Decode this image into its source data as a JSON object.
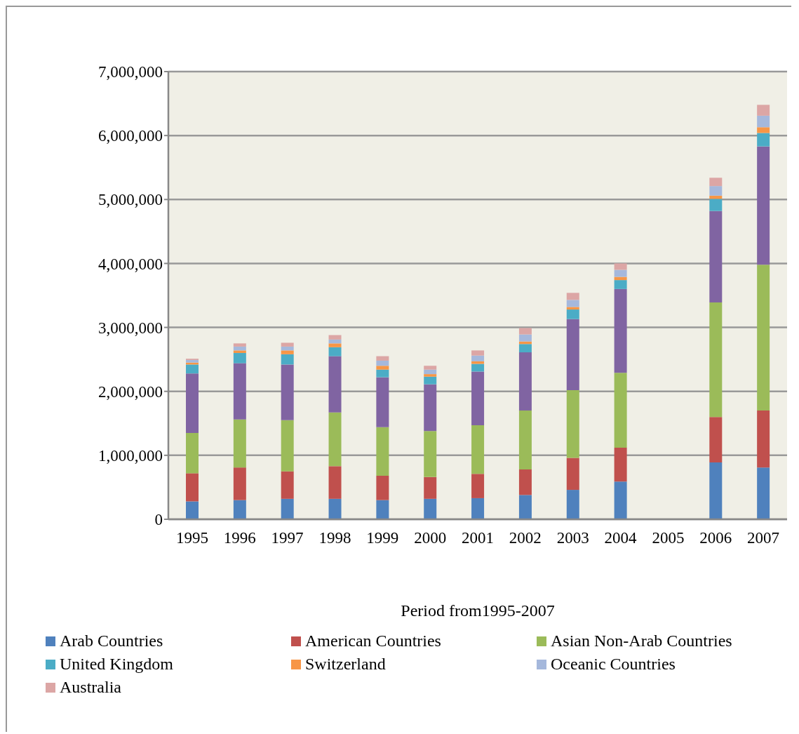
{
  "chart_data": {
    "type": "bar",
    "stacked": true,
    "xlabel": "Period from1995-2007",
    "categories": [
      "1995",
      "1996",
      "1997",
      "1998",
      "1999",
      "2000",
      "2001",
      "2002",
      "2003",
      "2004",
      "2005",
      "2006",
      "2007"
    ],
    "series": [
      {
        "name": "Arab Countries",
        "color": "#4f81bd",
        "values": [
          280000,
          300000,
          320000,
          320000,
          300000,
          320000,
          330000,
          380000,
          460000,
          590000,
          null,
          890000,
          810000
        ]
      },
      {
        "name": "American Countries",
        "color": "#c0504d",
        "values": [
          440000,
          510000,
          430000,
          510000,
          380000,
          340000,
          380000,
          400000,
          500000,
          530000,
          null,
          710000,
          890000
        ]
      },
      {
        "name": "Asian Non-Arab Countries",
        "color": "#9bbb59",
        "values": [
          630000,
          750000,
          800000,
          840000,
          760000,
          720000,
          760000,
          920000,
          1060000,
          1170000,
          null,
          1790000,
          2280000
        ]
      },
      {
        "color": "#8064a2",
        "values": [
          930000,
          880000,
          870000,
          880000,
          780000,
          730000,
          840000,
          910000,
          1110000,
          1310000,
          null,
          1430000,
          1850000
        ]
      },
      {
        "name": "United Kingdom",
        "color": "#4bacc6",
        "values": [
          140000,
          160000,
          160000,
          140000,
          120000,
          120000,
          120000,
          130000,
          150000,
          140000,
          null,
          190000,
          210000
        ]
      },
      {
        "name": "Switzerland",
        "color": "#f79646",
        "values": [
          30000,
          40000,
          60000,
          60000,
          60000,
          40000,
          40000,
          40000,
          40000,
          50000,
          null,
          50000,
          90000
        ]
      },
      {
        "name": "Oceanic Countries",
        "color": "#a5b8dc",
        "values": [
          40000,
          60000,
          60000,
          60000,
          80000,
          70000,
          90000,
          110000,
          110000,
          110000,
          null,
          150000,
          180000
        ]
      },
      {
        "name": "Australia",
        "color": "#dca6a5",
        "values": [
          20000,
          50000,
          60000,
          70000,
          70000,
          60000,
          80000,
          100000,
          110000,
          100000,
          null,
          130000,
          170000
        ]
      }
    ],
    "ylim": [
      0,
      7000000
    ],
    "yticks": [
      0,
      {
        "value": 1000000,
        "label": "1,000,000"
      },
      {
        "value": 2000000,
        "label": "2,000,000"
      },
      {
        "value": 3000000,
        "label": "3,000,000"
      },
      {
        "value": 4000000,
        "label": "4,000,000"
      },
      {
        "value": 5000000,
        "label": "5,000,000"
      },
      {
        "value": 6000000,
        "label": "6,000,000"
      },
      {
        "value": 7000000,
        "label": "7,000,000"
      }
    ],
    "grid": "y",
    "legend": "bottom"
  }
}
